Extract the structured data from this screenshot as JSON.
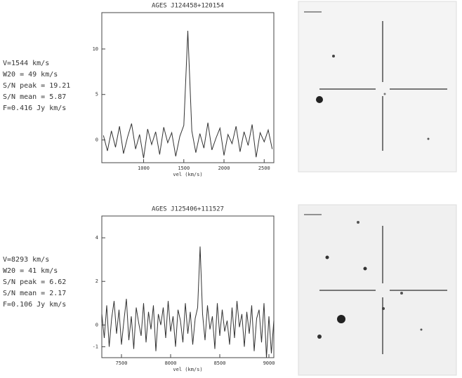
{
  "chart_data": [
    {
      "type": "line",
      "title": "AGES J124458+120154",
      "x_label": "vel (km/s)",
      "annotations": [
        "V=1544 km/s",
        "W20 = 49 km/s",
        "S/N peak = 19.21",
        "S/N mean = 5.87",
        "F=0.416 Jy km/s"
      ],
      "x": [
        500,
        550,
        600,
        650,
        700,
        750,
        800,
        850,
        900,
        950,
        1000,
        1050,
        1100,
        1150,
        1200,
        1250,
        1300,
        1350,
        1400,
        1450,
        1500,
        1550,
        1600,
        1650,
        1700,
        1750,
        1800,
        1850,
        1900,
        1950,
        2000,
        2050,
        2100,
        2150,
        2200,
        2250,
        2300,
        2350,
        2400,
        2450,
        2500,
        2550,
        2600
      ],
      "values": [
        0.5,
        -1.2,
        1.0,
        -0.8,
        1.5,
        -1.5,
        0.3,
        1.8,
        -1.0,
        0.6,
        -2.0,
        1.2,
        -0.5,
        0.9,
        -1.6,
        1.4,
        -0.3,
        0.8,
        -1.8,
        0.4,
        1.6,
        12.0,
        1.0,
        -1.4,
        0.7,
        -0.9,
        1.9,
        -1.1,
        0.2,
        1.3,
        -1.7,
        0.6,
        -0.4,
        1.5,
        -1.3,
        0.9,
        -0.6,
        1.7,
        -1.9,
        0.8,
        -0.2,
        1.1,
        -1.0
      ],
      "color": "#333333",
      "xlim": [
        480,
        2620
      ],
      "xticks": [
        1000,
        1500,
        2000,
        2500
      ],
      "ylim": [
        -2.5,
        14
      ],
      "yticks": [
        0,
        5,
        10
      ]
    },
    {
      "type": "line",
      "title": "AGES J125406+111527",
      "x_label": "vel (km/s)",
      "annotations": [
        "V=8293 km/s",
        "W20 = 41 km/s",
        "S/N peak = 6.62",
        "S/N mean = 2.17",
        "F=0.106 Jy km/s"
      ],
      "x": [
        7300,
        7325,
        7350,
        7375,
        7400,
        7425,
        7450,
        7475,
        7500,
        7525,
        7550,
        7575,
        7600,
        7625,
        7650,
        7675,
        7700,
        7725,
        7750,
        7775,
        7800,
        7825,
        7850,
        7875,
        7900,
        7925,
        7950,
        7975,
        8000,
        8025,
        8050,
        8075,
        8100,
        8125,
        8150,
        8175,
        8200,
        8225,
        8250,
        8275,
        8300,
        8325,
        8350,
        8375,
        8400,
        8425,
        8450,
        8475,
        8500,
        8525,
        8550,
        8575,
        8600,
        8625,
        8650,
        8675,
        8700,
        8725,
        8750,
        8775,
        8800,
        8825,
        8850,
        8875,
        8900,
        8925,
        8950,
        8975,
        9000,
        9025,
        9050
      ],
      "values": [
        0.5,
        -0.6,
        0.9,
        -1.0,
        0.3,
        1.1,
        -0.4,
        0.7,
        -0.9,
        0.2,
        1.2,
        -0.7,
        0.4,
        -1.1,
        0.8,
        0.1,
        -0.5,
        1.0,
        -0.8,
        0.6,
        -0.2,
        0.9,
        -1.2,
        0.5,
        0.0,
        0.8,
        -0.6,
        1.1,
        -0.3,
        0.4,
        -1.0,
        0.7,
        0.2,
        -0.8,
        1.0,
        -0.4,
        0.6,
        -0.9,
        0.3,
        0.8,
        3.6,
        0.5,
        -0.7,
        0.9,
        -0.2,
        0.4,
        -1.1,
        1.0,
        -0.5,
        0.7,
        -0.3,
        0.2,
        -0.9,
        0.8,
        -0.6,
        1.1,
        -0.1,
        0.5,
        -1.0,
        0.6,
        -0.4,
        0.9,
        -1.2,
        0.3,
        0.7,
        -0.8,
        1.0,
        -1.5,
        0.4,
        -1.3,
        0.2
      ],
      "color": "#333333",
      "xlim": [
        7300,
        9050
      ],
      "xticks": [
        7500,
        8000,
        8500,
        9000
      ],
      "ylim": [
        -1.5,
        5.0
      ],
      "yticks": [
        -1,
        0,
        2,
        4
      ]
    }
  ]
}
